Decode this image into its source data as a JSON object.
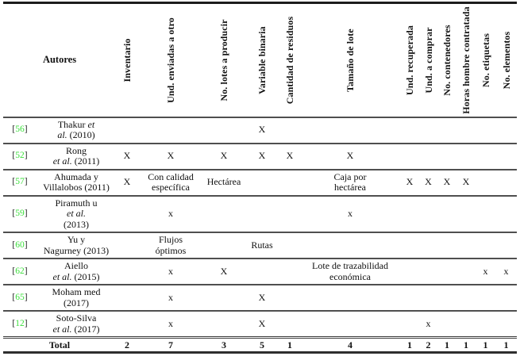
{
  "colors": {
    "citation_green": "#3bdf3b"
  },
  "table": {
    "autores_label": "Autores",
    "column_ids": [
      "inventario",
      "und-enviadas-a-otro",
      "no-lotes-a-producir",
      "variable-binaria",
      "cantidad-de-residuos",
      "tamano-de-lote",
      "und-recuperada",
      "und-a-comprar",
      "no-contenedores",
      "horas-hombre-contratada",
      "no-etiquetas",
      "no-elementos"
    ],
    "variable_headers": [
      "Inventario",
      "Und. enviadas a otro",
      "No. lotes a producir",
      "Variable binaria",
      "Cantidad de residuos",
      "Tamaño de lote",
      "Und. recuperada",
      "Und. a comprar",
      "No. contenedores",
      "Horas hombre contratada",
      "No. etiquetas",
      "No. elementos"
    ],
    "rows": [
      {
        "ref": "56",
        "author": [
          [
            [
              "Thakur ",
              false
            ],
            [
              "et",
              true
            ]
          ],
          [
            [
              "al.",
              true
            ],
            [
              " (2010)",
              false
            ]
          ]
        ],
        "cells": [
          "",
          "",
          "",
          "X",
          "",
          "",
          "",
          "",
          "",
          "",
          "",
          ""
        ]
      },
      {
        "ref": "52",
        "author": [
          [
            [
              "Rong",
              false
            ]
          ],
          [
            [
              "et al.",
              true
            ],
            [
              " (2011)",
              false
            ]
          ]
        ],
        "cells": [
          "X",
          "X",
          "X",
          "X",
          "X",
          "X",
          "",
          "",
          "",
          "",
          "",
          ""
        ]
      },
      {
        "ref": "57",
        "author": [
          [
            [
              "Ahumada y",
              false
            ]
          ],
          [
            [
              "Villalobos (2011)",
              false
            ]
          ]
        ],
        "cells": [
          "X",
          "Con calidad\nespecífica",
          "Hectárea",
          "",
          "",
          "Caja por\nhectárea",
          "X",
          "X",
          "X",
          "X",
          "",
          ""
        ]
      },
      {
        "ref": "59",
        "author": [
          [
            [
              "Piramuth u",
              false
            ]
          ],
          [
            [
              "et al.",
              true
            ]
          ],
          [
            [
              "(2013)",
              false
            ]
          ]
        ],
        "cells": [
          "",
          "x",
          "",
          "",
          "",
          "x",
          "",
          "",
          "",
          "",
          "",
          ""
        ]
      },
      {
        "ref": "60",
        "author": [
          [
            [
              "Yu y",
              false
            ]
          ],
          [
            [
              "Nagurney (2013)",
              false
            ]
          ]
        ],
        "cells": [
          "",
          "Flujos\nóptimos",
          "",
          "Rutas",
          "",
          "",
          "",
          "",
          "",
          "",
          "",
          ""
        ]
      },
      {
        "ref": "62",
        "author": [
          [
            [
              "Aiello",
              false
            ]
          ],
          [
            [
              "et al.",
              true
            ],
            [
              " (2015)",
              false
            ]
          ]
        ],
        "cells": [
          "",
          "x",
          "X",
          "",
          "",
          "Lote de trazabilidad\neconómica",
          "",
          "",
          "",
          "",
          "x",
          "x"
        ]
      },
      {
        "ref": "65",
        "author": [
          [
            [
              "Moham med",
              false
            ]
          ],
          [
            [
              "(2017)",
              false
            ]
          ]
        ],
        "cells": [
          "",
          "x",
          "",
          "X",
          "",
          "",
          "",
          "",
          "",
          "",
          "",
          ""
        ]
      },
      {
        "ref": "12",
        "author": [
          [
            [
              "Soto-Silva",
              false
            ]
          ],
          [
            [
              "et al.",
              true
            ],
            [
              " (2017)",
              false
            ]
          ]
        ],
        "cells": [
          "",
          "x",
          "",
          "X",
          "",
          "",
          "",
          "x",
          "",
          "",
          "",
          ""
        ]
      }
    ],
    "total": {
      "label": "Total",
      "values": [
        "2",
        "7",
        "3",
        "5",
        "1",
        "4",
        "1",
        "2",
        "1",
        "1",
        "1",
        "1"
      ]
    }
  }
}
